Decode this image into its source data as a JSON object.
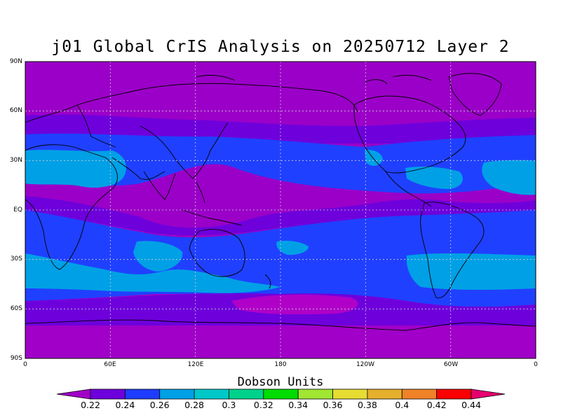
{
  "title": "j01 Global CrIS Analysis on 20250712 Layer 2",
  "colorbar_title": "Dobson Units",
  "chart_data": {
    "type": "heatmap",
    "title": "j01 Global CrIS Analysis on 20250712 Layer 2",
    "units": "Dobson Units",
    "lat_ticks": [
      "90N",
      "60N",
      "30N",
      "EQ",
      "30S",
      "60S",
      "90S"
    ],
    "lon_ticks": [
      "0",
      "60E",
      "120E",
      "180",
      "120W",
      "60W",
      "0"
    ],
    "colorbar_levels": [
      "0.22",
      "0.24",
      "0.26",
      "0.28",
      "0.3",
      "0.32",
      "0.34",
      "0.36",
      "0.38",
      "0.4",
      "0.42",
      "0.44"
    ],
    "colorbar_colors": [
      "#a000c8",
      "#6e00dc",
      "#1e3cff",
      "#00a0e6",
      "#00c8c8",
      "#00d28c",
      "#00dc00",
      "#a0e632",
      "#e6dc32",
      "#e6af2d",
      "#f08228",
      "#fa0000",
      "#e6006e"
    ],
    "band_values_by_latitude": [
      {
        "lat": 80,
        "value": 0.21
      },
      {
        "lat": 60,
        "value": 0.22
      },
      {
        "lat": 45,
        "value": 0.24
      },
      {
        "lat": 25,
        "value": 0.25
      },
      {
        "lat": 5,
        "value": 0.23
      },
      {
        "lat": -20,
        "value": 0.25
      },
      {
        "lat": -38,
        "value": 0.26
      },
      {
        "lat": -55,
        "value": 0.24
      },
      {
        "lat": -70,
        "value": 0.22
      },
      {
        "lat": -85,
        "value": 0.21
      }
    ],
    "grid": true
  },
  "colors": {
    "ocean_band_low": "#9b00c8",
    "band_purple": "#6e00dc",
    "band_blue": "#2040ff",
    "band_lightblue": "#00a0e6",
    "land_outline": "#000000",
    "grid": "#cfcfcf"
  }
}
